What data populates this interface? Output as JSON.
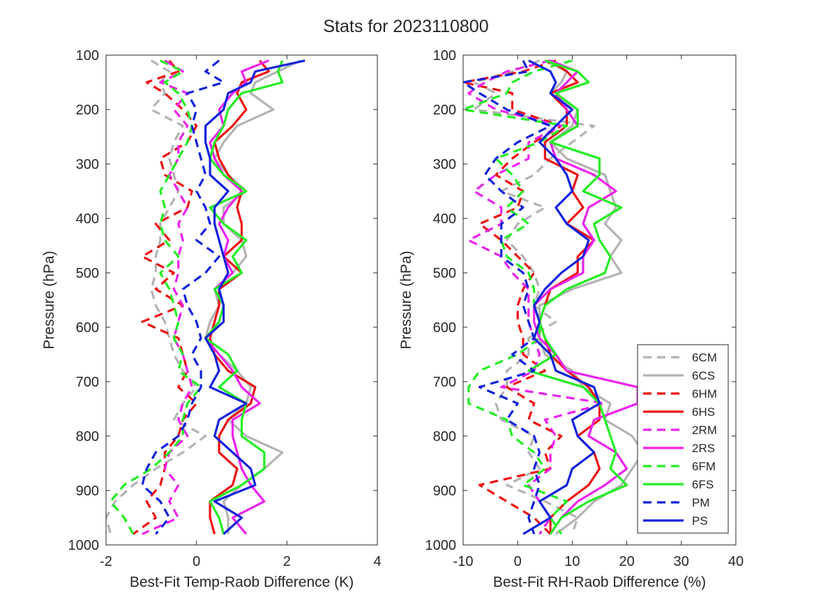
{
  "title": "Stats for 2023110800",
  "colors": {
    "6C": "#b3b3b3",
    "6H": "#ee1111",
    "2R": "#ee22ee",
    "6F": "#22ee22",
    "P": "#1122dd"
  },
  "legend": {
    "placement": "lower-right of right panel",
    "entries": [
      {
        "label": "6CM",
        "color": "#b3b3b3",
        "style": "dashed"
      },
      {
        "label": "6CS",
        "color": "#b3b3b3",
        "style": "solid"
      },
      {
        "label": "6HM",
        "color": "#ee1111",
        "style": "dashed"
      },
      {
        "label": "6HS",
        "color": "#ee1111",
        "style": "solid"
      },
      {
        "label": "2RM",
        "color": "#ee22ee",
        "style": "dashed"
      },
      {
        "label": "2RS",
        "color": "#ee22ee",
        "style": "solid"
      },
      {
        "label": "6FM",
        "color": "#22ee22",
        "style": "dashed"
      },
      {
        "label": "6FS",
        "color": "#22ee22",
        "style": "solid"
      },
      {
        "label": "PM",
        "color": "#1122dd",
        "style": "dashed"
      },
      {
        "label": "PS",
        "color": "#1122dd",
        "style": "solid"
      }
    ]
  },
  "chart_data": [
    {
      "type": "line",
      "xlabel": "Best-Fit Temp-Raob Difference (K)",
      "ylabel": "Pressure (hPa)",
      "xlim": [
        -2,
        4
      ],
      "ylim": [
        1000,
        100
      ],
      "y_reversed": true,
      "xticks": [
        "-2",
        "0",
        "2",
        "4"
      ],
      "yticks": [
        "100",
        "200",
        "300",
        "400",
        "500",
        "600",
        "700",
        "800",
        "900",
        "1000"
      ],
      "grid": false,
      "y": [
        110,
        130,
        150,
        170,
        200,
        230,
        260,
        290,
        320,
        350,
        380,
        410,
        440,
        470,
        500,
        530,
        560,
        590,
        620,
        650,
        680,
        710,
        740,
        770,
        800,
        830,
        860,
        890,
        920,
        950,
        980
      ],
      "series": [
        {
          "name": "6CM",
          "style": "dashed",
          "color": "#b3b3b3",
          "values": [
            -1.0,
            -0.6,
            -0.8,
            -0.7,
            -1.0,
            -0.3,
            -0.5,
            -0.6,
            -0.5,
            -0.4,
            -0.6,
            -0.8,
            -0.8,
            -0.9,
            -0.9,
            -1.0,
            -0.9,
            -0.7,
            -0.6,
            -0.5,
            -0.3,
            0.0,
            -0.3,
            -0.5,
            0.2,
            -0.3,
            -0.9,
            -1.4,
            -1.8,
            -2.0,
            -1.9
          ]
        },
        {
          "name": "6CS",
          "style": "solid",
          "color": "#b3b3b3",
          "values": [
            2.3,
            1.8,
            1.3,
            1.2,
            1.7,
            0.9,
            0.6,
            0.4,
            0.7,
            1.1,
            0.6,
            0.6,
            1.0,
            1.1,
            0.8,
            0.4,
            0.5,
            0.3,
            0.2,
            0.5,
            0.9,
            1.2,
            1.1,
            0.7,
            1.1,
            1.9,
            1.5,
            1.0,
            0.6,
            0.7,
            0.7
          ]
        },
        {
          "name": "6HM",
          "style": "dashed",
          "color": "#ee1111",
          "values": [
            -0.6,
            -0.4,
            -1.1,
            -0.7,
            -0.3,
            0.0,
            -0.2,
            -0.8,
            -0.7,
            -0.1,
            -0.2,
            -0.9,
            -0.6,
            -1.2,
            -0.5,
            -0.9,
            -0.3,
            -1.2,
            -0.4,
            -0.3,
            -0.2,
            -0.4,
            0.0,
            -0.3,
            -0.4,
            -0.7,
            -0.7,
            -0.8,
            -1.1,
            -0.9,
            -1.4
          ]
        },
        {
          "name": "6HS",
          "style": "solid",
          "color": "#ee1111",
          "values": [
            1.4,
            1.6,
            1.0,
            0.9,
            1.1,
            0.8,
            0.4,
            0.5,
            0.7,
            1.0,
            0.9,
            1.0,
            1.0,
            0.6,
            1.0,
            0.5,
            0.5,
            0.4,
            0.3,
            0.4,
            0.7,
            1.3,
            1.2,
            0.7,
            0.5,
            0.5,
            0.9,
            0.8,
            0.3,
            0.3,
            0.4
          ]
        },
        {
          "name": "2RM",
          "style": "dashed",
          "color": "#ee22ee",
          "values": [
            -0.7,
            -0.3,
            -0.8,
            -0.2,
            -0.5,
            -0.2,
            -0.4,
            -0.4,
            -0.6,
            -0.4,
            -0.2,
            -0.4,
            -0.3,
            -0.4,
            -0.4,
            -0.5,
            -0.3,
            -0.4,
            -0.5,
            -0.3,
            -0.2,
            -0.1,
            -0.3,
            -0.4,
            -0.2,
            -0.6,
            -0.7,
            -0.4,
            -0.6,
            -0.4,
            -1.2
          ]
        },
        {
          "name": "2RS",
          "style": "solid",
          "color": "#ee22ee",
          "values": [
            1.6,
            1.0,
            1.1,
            0.8,
            0.5,
            0.6,
            0.3,
            0.4,
            0.6,
            1.0,
            0.7,
            0.5,
            0.7,
            0.6,
            0.8,
            0.4,
            0.6,
            0.5,
            0.2,
            0.5,
            0.8,
            1.0,
            1.4,
            0.8,
            0.8,
            0.9,
            1.0,
            1.2,
            1.5,
            0.8,
            1.1
          ]
        },
        {
          "name": "6FM",
          "style": "dashed",
          "color": "#22ee22",
          "values": [
            -0.8,
            -0.3,
            -0.7,
            -0.4,
            -0.2,
            -0.1,
            -0.2,
            -0.4,
            -0.6,
            -0.8,
            -0.7,
            -0.8,
            -0.7,
            -0.4,
            -0.8,
            -0.6,
            -0.5,
            -0.4,
            -0.5,
            -0.3,
            -0.4,
            0.1,
            -0.2,
            -0.3,
            -0.3,
            -0.6,
            -1.0,
            -1.6,
            -1.9,
            -1.6,
            -1.4
          ]
        },
        {
          "name": "6FS",
          "style": "solid",
          "color": "#22ee22",
          "values": [
            1.9,
            1.8,
            1.9,
            1.0,
            0.7,
            0.6,
            0.4,
            0.3,
            0.6,
            1.1,
            0.3,
            0.6,
            1.1,
            0.8,
            1.0,
            0.4,
            0.6,
            0.5,
            0.2,
            0.7,
            0.9,
            0.5,
            1.1,
            1.0,
            1.0,
            1.5,
            1.5,
            1.0,
            0.3,
            0.5,
            0.6
          ]
        },
        {
          "name": "PM",
          "style": "dashed",
          "color": "#1122dd",
          "values": [
            0.5,
            0.2,
            0.6,
            -0.2,
            0.0,
            -0.1,
            0.0,
            0.1,
            0.2,
            0.0,
            0.2,
            0.3,
            0.0,
            0.5,
            0.2,
            -0.3,
            -0.2,
            0.0,
            0.1,
            -0.1,
            0.1,
            0.1,
            -0.1,
            -0.2,
            -0.4,
            -0.9,
            -1.1,
            -1.2,
            -0.8,
            -0.6,
            -0.9
          ]
        },
        {
          "name": "PS",
          "style": "solid",
          "color": "#1122dd",
          "values": [
            2.4,
            1.3,
            1.2,
            0.7,
            0.6,
            0.2,
            0.2,
            0.3,
            0.3,
            0.7,
            0.4,
            0.4,
            0.5,
            0.6,
            0.7,
            0.5,
            0.6,
            0.6,
            0.2,
            0.4,
            0.5,
            0.3,
            1.1,
            0.5,
            0.4,
            0.8,
            1.2,
            1.3,
            0.4,
            1.0,
            0.6
          ]
        }
      ]
    },
    {
      "type": "line",
      "xlabel": "Best-Fit RH-Raob Difference (%)",
      "ylabel": "Pressure (hPa)",
      "xlim": [
        -10,
        40
      ],
      "ylim": [
        1000,
        100
      ],
      "y_reversed": true,
      "xticks": [
        "-10",
        "0",
        "10",
        "20",
        "30",
        "40"
      ],
      "yticks": [
        "100",
        "200",
        "300",
        "400",
        "500",
        "600",
        "700",
        "800",
        "900",
        "1000"
      ],
      "grid": false,
      "y": [
        110,
        130,
        150,
        170,
        200,
        230,
        260,
        290,
        320,
        350,
        380,
        410,
        440,
        470,
        500,
        530,
        560,
        590,
        620,
        650,
        680,
        710,
        740,
        770,
        800,
        830,
        860,
        890,
        920,
        950,
        980
      ],
      "series": [
        {
          "name": "6CM",
          "style": "dashed",
          "color": "#b3b3b3",
          "values": [
            4,
            -1,
            -8,
            -4,
            -8,
            14,
            10,
            6,
            3,
            -3,
            5,
            0,
            -2,
            1,
            3,
            4,
            3,
            7,
            2,
            2,
            -2,
            -2,
            -4,
            -3,
            3,
            2,
            4,
            -2,
            5,
            11,
            10
          ]
        },
        {
          "name": "6CS",
          "style": "solid",
          "color": "#b3b3b3",
          "values": [
            5,
            9,
            8,
            6,
            11,
            10,
            6,
            9,
            16,
            17,
            18,
            16,
            19,
            17,
            19,
            10,
            4,
            4,
            4,
            5,
            10,
            12,
            17,
            16,
            21,
            23,
            21,
            19,
            14,
            11,
            7
          ]
        },
        {
          "name": "6HM",
          "style": "dashed",
          "color": "#ee1111",
          "values": [
            7,
            1,
            -10,
            -1,
            -1,
            8,
            3,
            -1,
            -4,
            1,
            0,
            -7,
            -3,
            0,
            3,
            1,
            0,
            0,
            1,
            1,
            5,
            -2,
            3,
            2,
            8,
            5,
            6,
            -7,
            -2,
            3,
            6
          ]
        },
        {
          "name": "6HS",
          "style": "solid",
          "color": "#ee1111",
          "values": [
            6,
            9,
            11,
            6,
            9,
            9,
            5,
            5,
            11,
            10,
            12,
            9,
            14,
            11,
            11,
            6,
            5,
            4,
            5,
            6,
            9,
            13,
            15,
            15,
            11,
            14,
            15,
            13,
            9,
            6,
            6
          ]
        },
        {
          "name": "2RM",
          "style": "dashed",
          "color": "#ee22ee",
          "values": [
            6,
            -2,
            -6,
            -9,
            -4,
            8,
            2,
            2,
            -4,
            -8,
            -3,
            -3,
            -9,
            -3,
            -1,
            2,
            2,
            2,
            3,
            4,
            3,
            -3,
            16,
            5,
            7,
            6,
            6,
            2,
            4,
            6,
            4
          ]
        },
        {
          "name": "2RS",
          "style": "solid",
          "color": "#ee22ee",
          "values": [
            6,
            11,
            9,
            7,
            9,
            11,
            6,
            7,
            14,
            18,
            13,
            12,
            14,
            12,
            12,
            6,
            3,
            3,
            4,
            7,
            9,
            22,
            22,
            14,
            13,
            18,
            20,
            16,
            11,
            8,
            6
          ]
        },
        {
          "name": "6FM",
          "style": "dashed",
          "color": "#22ee22",
          "values": [
            10,
            3,
            -1,
            -2,
            -10,
            9,
            4,
            -4,
            -1,
            1,
            -2,
            2,
            -3,
            -2,
            2,
            3,
            3,
            4,
            4,
            0,
            -7,
            -9,
            -9,
            -2,
            -1,
            3,
            5,
            1,
            9,
            6,
            8
          ]
        },
        {
          "name": "6FS",
          "style": "solid",
          "color": "#22ee22",
          "values": [
            5,
            11,
            13,
            7,
            11,
            11,
            6,
            15,
            15,
            12,
            19,
            14,
            15,
            17,
            16,
            9,
            5,
            4,
            5,
            7,
            2,
            12,
            15,
            16,
            17,
            18,
            17,
            20,
            13,
            8,
            6
          ]
        },
        {
          "name": "PM",
          "style": "dashed",
          "color": "#1122dd",
          "values": [
            1,
            2,
            -10,
            -7,
            -2,
            6,
            0,
            -4,
            -6,
            -3,
            1,
            -3,
            -3,
            -3,
            1,
            2,
            1,
            2,
            3,
            -1,
            3,
            -7,
            0,
            -2,
            3,
            4,
            3,
            4,
            3,
            2,
            3
          ]
        },
        {
          "name": "PS",
          "style": "solid",
          "color": "#1122dd",
          "values": [
            2,
            6,
            7,
            6,
            10,
            7,
            4,
            7,
            9,
            10,
            7,
            9,
            13,
            12,
            8,
            5,
            3,
            4,
            3,
            6,
            7,
            14,
            15,
            10,
            11,
            14,
            10,
            9,
            4,
            6,
            1
          ]
        }
      ]
    }
  ]
}
